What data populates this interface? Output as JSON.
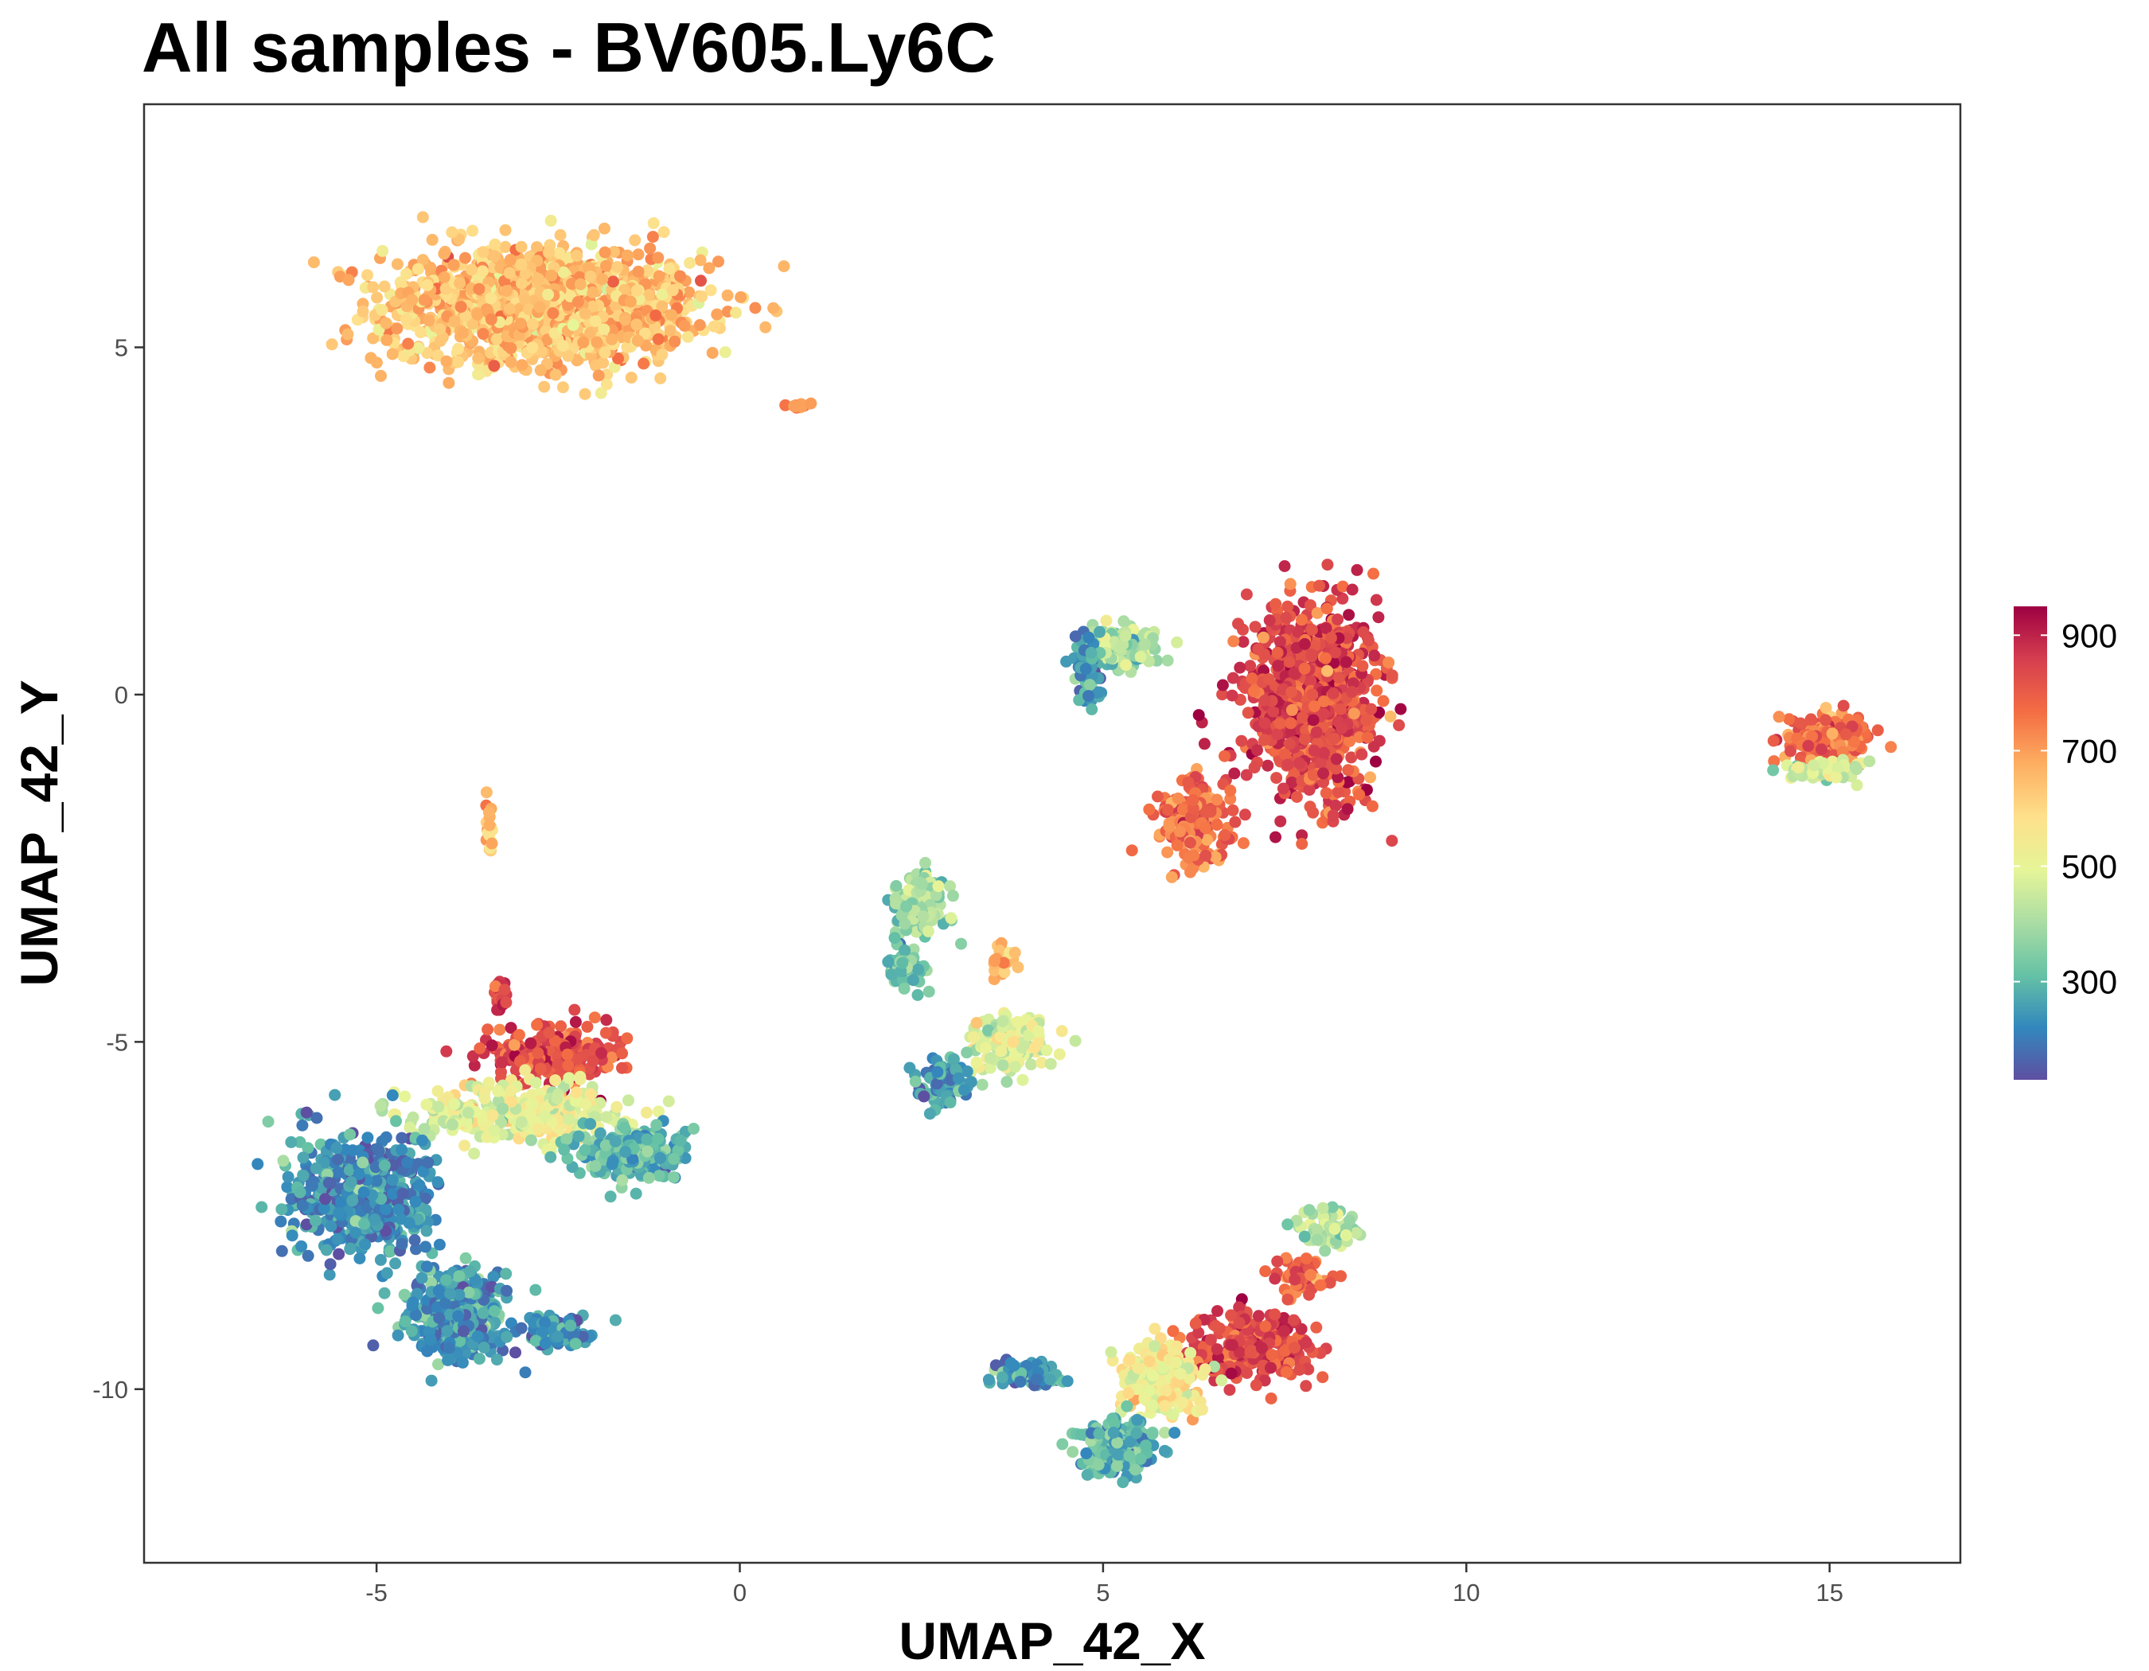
{
  "chart_data": {
    "type": "scatter",
    "title": "All samples - BV605.Ly6C",
    "xlabel": "UMAP_42_X",
    "ylabel": "UMAP_42_Y",
    "xlim": [
      -8.2,
      16.8
    ],
    "ylim": [
      -12.5,
      8.5
    ],
    "x_ticks": [
      -5,
      0,
      5,
      10,
      15
    ],
    "y_ticks": [
      5,
      0,
      -5,
      -10
    ],
    "x_tick_labels": [
      "-5",
      "0",
      "5",
      "10",
      "15"
    ],
    "y_tick_labels": [
      "5",
      "0",
      "-5",
      "-10"
    ],
    "grid": false,
    "color_scale": {
      "name": "Spectral",
      "min": 130,
      "max": 950,
      "colors": [
        "#5e4fa2",
        "#3288bd",
        "#66c2a5",
        "#abdda4",
        "#e6f598",
        "#fee08b",
        "#fdae61",
        "#f46d43",
        "#d53e4f",
        "#9e0142"
      ],
      "legend_ticks": [
        300,
        500,
        700,
        900
      ],
      "legend_tick_labels": [
        "300",
        "500",
        "700",
        "900"
      ],
      "legend_position": "right"
    },
    "clusters": [
      {
        "x": -2.7,
        "y": 5.6,
        "spread_x": 2.2,
        "spread_y": 0.85,
        "value": 640,
        "n": 1400
      },
      {
        "x": 0.8,
        "y": 4.15,
        "spread_x": 0.15,
        "spread_y": 0.06,
        "value": 720,
        "n": 12
      },
      {
        "x": 7.9,
        "y": -0.1,
        "spread_x": 0.9,
        "spread_y": 1.3,
        "value": 830,
        "n": 900
      },
      {
        "x": 6.3,
        "y": -1.8,
        "spread_x": 0.5,
        "spread_y": 0.6,
        "value": 760,
        "n": 200
      },
      {
        "x": 5.2,
        "y": 0.7,
        "spread_x": 0.5,
        "spread_y": 0.3,
        "value": 400,
        "n": 150
      },
      {
        "x": 4.8,
        "y": 0.4,
        "spread_x": 0.2,
        "spread_y": 0.6,
        "value": 250,
        "n": 60
      },
      {
        "x": 15.0,
        "y": -0.6,
        "spread_x": 0.55,
        "spread_y": 0.35,
        "value": 780,
        "n": 220
      },
      {
        "x": 14.9,
        "y": -1.1,
        "spread_x": 0.5,
        "spread_y": 0.15,
        "value": 480,
        "n": 60
      },
      {
        "x": -3.45,
        "y": -1.9,
        "spread_x": 0.05,
        "spread_y": 0.4,
        "value": 640,
        "n": 20
      },
      {
        "x": -2.6,
        "y": -5.2,
        "spread_x": 0.9,
        "spread_y": 0.4,
        "value": 830,
        "n": 250
      },
      {
        "x": -3.3,
        "y": -4.3,
        "spread_x": 0.12,
        "spread_y": 0.2,
        "value": 850,
        "n": 25
      },
      {
        "x": -3.1,
        "y": -6.0,
        "spread_x": 1.5,
        "spread_y": 0.4,
        "value": 500,
        "n": 300
      },
      {
        "x": -1.5,
        "y": -6.6,
        "spread_x": 0.8,
        "spread_y": 0.4,
        "value": 300,
        "n": 200
      },
      {
        "x": -5.2,
        "y": -7.2,
        "spread_x": 1.0,
        "spread_y": 0.9,
        "value": 230,
        "n": 500
      },
      {
        "x": -3.9,
        "y": -8.9,
        "spread_x": 0.7,
        "spread_y": 0.6,
        "value": 250,
        "n": 400
      },
      {
        "x": -2.5,
        "y": -9.2,
        "spread_x": 0.5,
        "spread_y": 0.2,
        "value": 260,
        "n": 100
      },
      {
        "x": 2.5,
        "y": -3.0,
        "spread_x": 0.4,
        "spread_y": 0.5,
        "value": 400,
        "n": 120
      },
      {
        "x": 2.3,
        "y": -3.9,
        "spread_x": 0.25,
        "spread_y": 0.3,
        "value": 320,
        "n": 60
      },
      {
        "x": 3.7,
        "y": -5.0,
        "spread_x": 0.6,
        "spread_y": 0.4,
        "value": 480,
        "n": 150
      },
      {
        "x": 2.8,
        "y": -5.6,
        "spread_x": 0.35,
        "spread_y": 0.4,
        "value": 250,
        "n": 80
      },
      {
        "x": 3.6,
        "y": -3.8,
        "spread_x": 0.2,
        "spread_y": 0.3,
        "value": 650,
        "n": 25
      },
      {
        "x": 7.0,
        "y": -9.4,
        "spread_x": 0.8,
        "spread_y": 0.5,
        "value": 830,
        "n": 250
      },
      {
        "x": 5.8,
        "y": -9.9,
        "spread_x": 0.6,
        "spread_y": 0.5,
        "value": 530,
        "n": 200
      },
      {
        "x": 5.2,
        "y": -10.8,
        "spread_x": 0.5,
        "spread_y": 0.4,
        "value": 300,
        "n": 180
      },
      {
        "x": 4.0,
        "y": -9.8,
        "spread_x": 0.5,
        "spread_y": 0.2,
        "value": 240,
        "n": 80
      },
      {
        "x": 8.1,
        "y": -7.7,
        "spread_x": 0.4,
        "spread_y": 0.3,
        "value": 400,
        "n": 80
      },
      {
        "x": 7.7,
        "y": -8.4,
        "spread_x": 0.4,
        "spread_y": 0.25,
        "value": 780,
        "n": 60
      }
    ]
  }
}
